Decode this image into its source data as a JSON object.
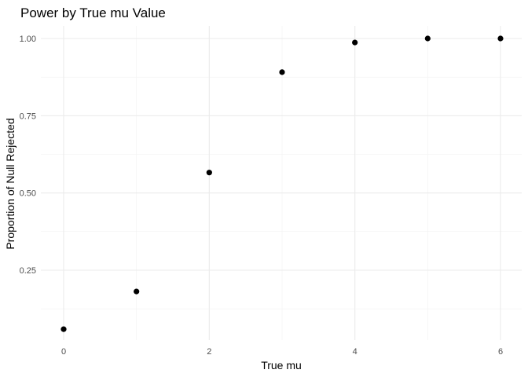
{
  "chart_data": {
    "type": "scatter",
    "title": "Power by True mu Value",
    "xlabel": "True mu",
    "ylabel": "Proportion of Null Rejected",
    "x": [
      0,
      1,
      2,
      3,
      4,
      5,
      6
    ],
    "y": [
      0.059,
      0.181,
      0.566,
      0.891,
      0.987,
      1.0,
      1.0
    ],
    "xlim": [
      0,
      6
    ],
    "ylim": [
      0.059,
      1.0
    ],
    "x_major_ticks": [
      0,
      2,
      4,
      6
    ],
    "x_major_tick_labels": [
      "0",
      "2",
      "4",
      "6"
    ],
    "x_minor_ticks": [
      1,
      3,
      5
    ],
    "y_major_ticks": [
      0.25,
      0.5,
      0.75,
      1.0
    ],
    "y_major_tick_labels": [
      "0.25",
      "0.50",
      "0.75",
      "1.00"
    ],
    "y_minor_ticks": [
      0.125,
      0.375,
      0.625,
      0.875
    ],
    "grid": true,
    "point_color": "#000000",
    "grid_color": "#ebebeb"
  }
}
